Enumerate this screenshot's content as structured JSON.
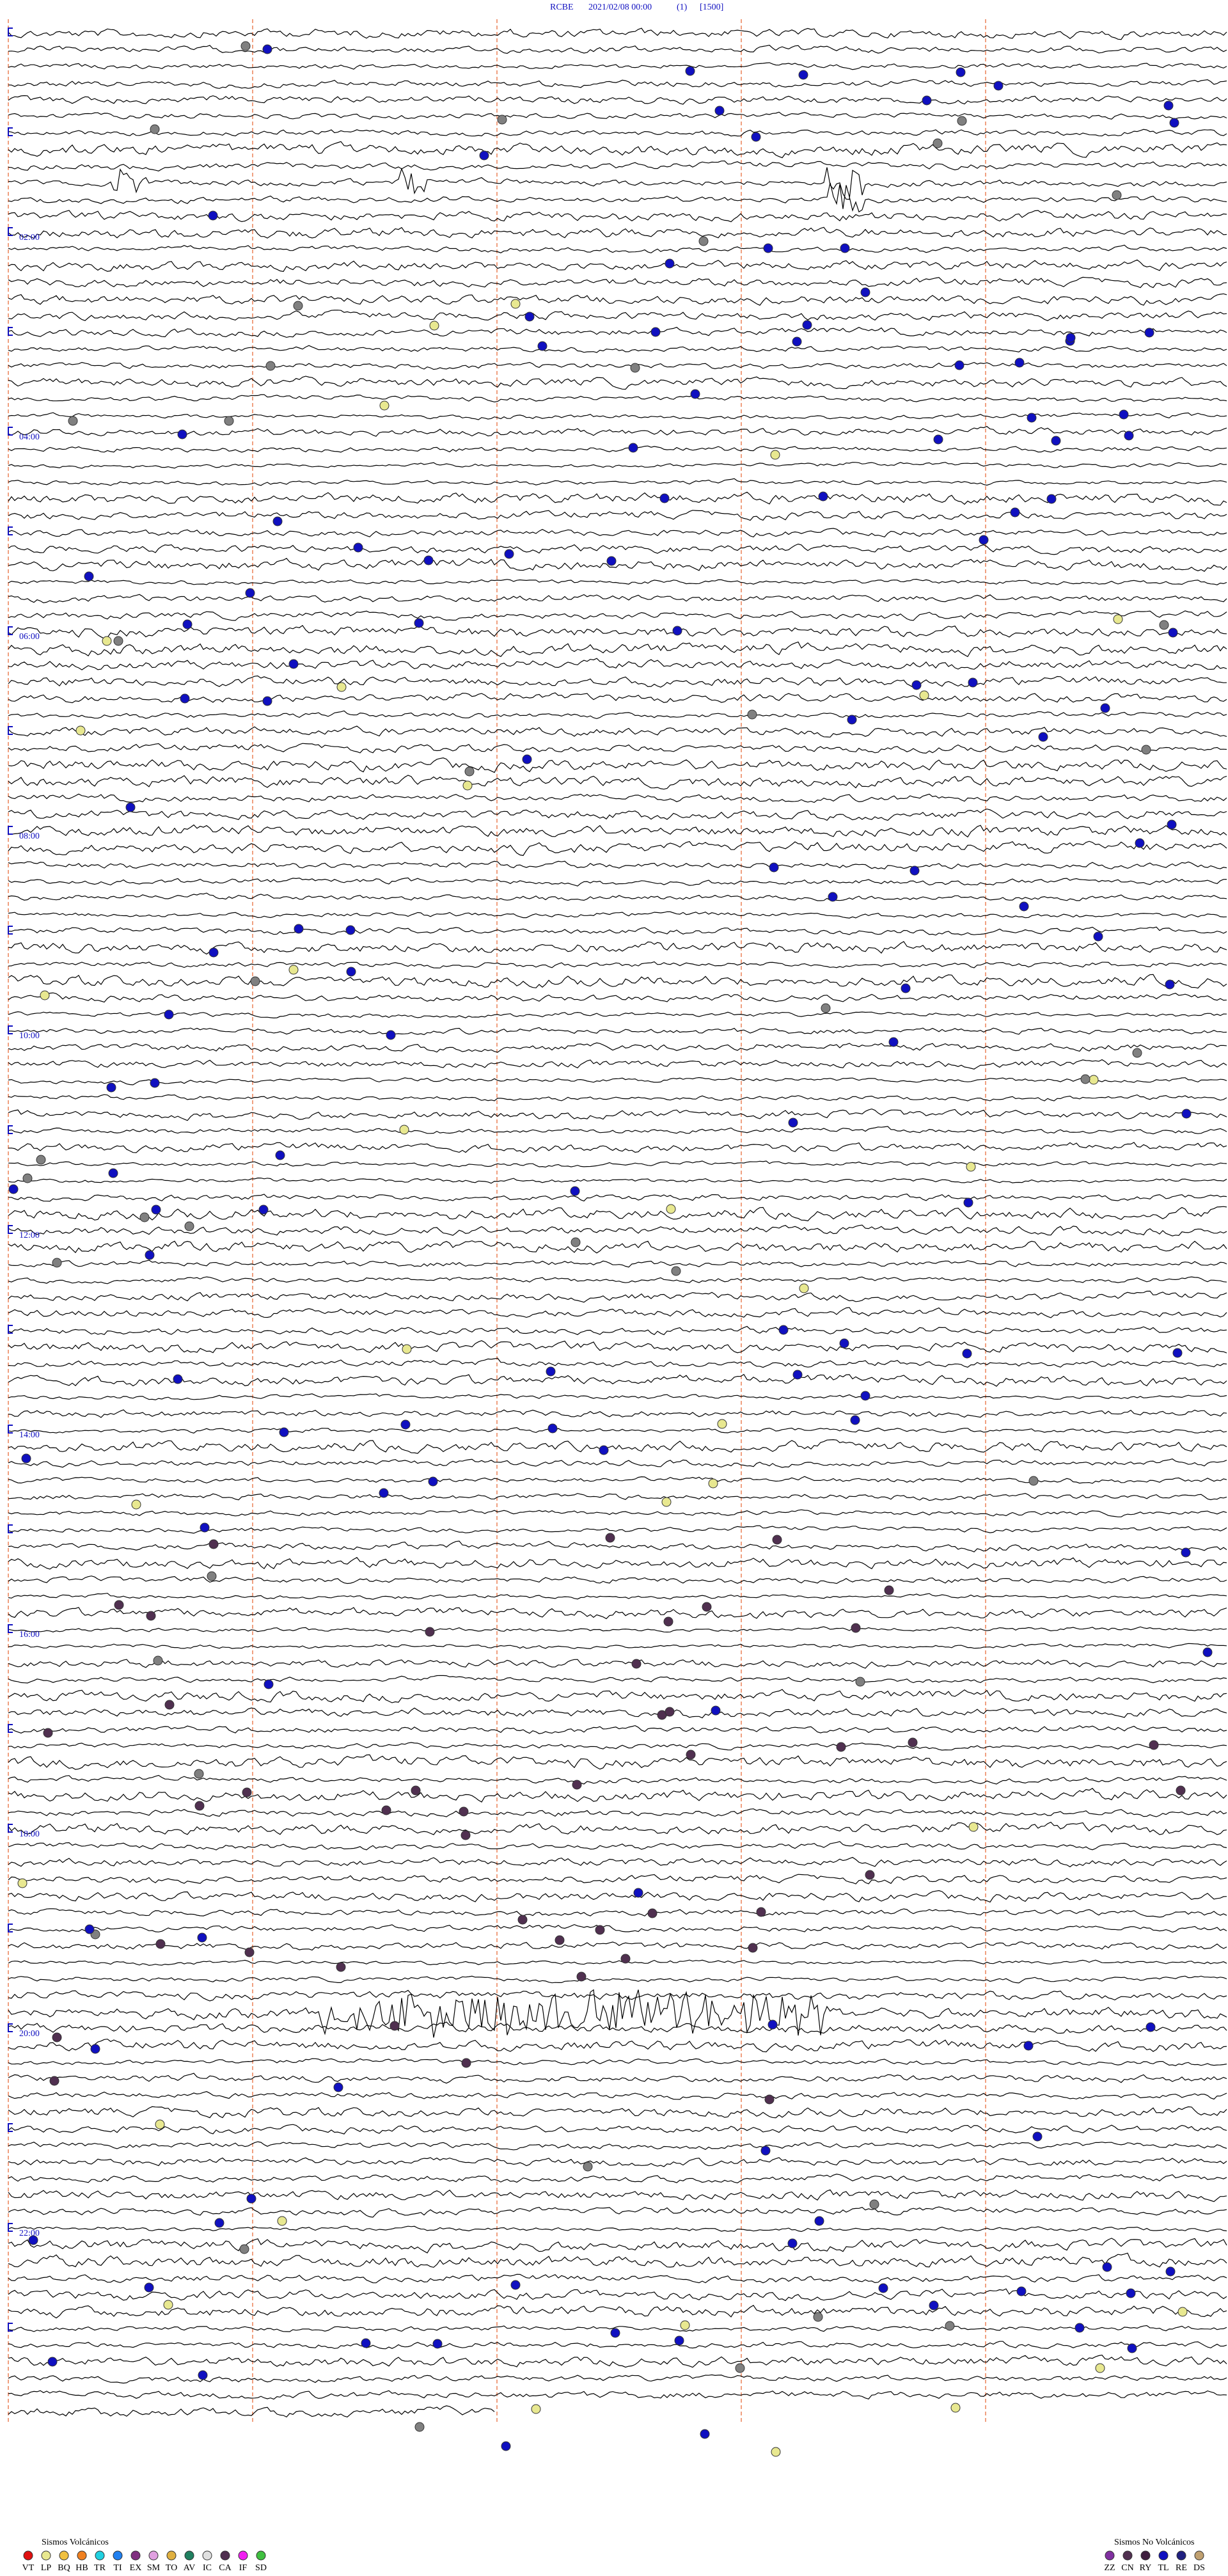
{
  "header": {
    "station": "RCBE",
    "datetime": "2021/02/08 00:00",
    "channel": "(1)",
    "scale": "[1500]"
  },
  "time_labels": [
    "02:00",
    "04:00",
    "06:00",
    "08:00",
    "10:00",
    "12:00",
    "14:00",
    "16:00",
    "18:00",
    "20:00",
    "22:00"
  ],
  "legend_volcanic": {
    "title": "Sismos Volcánicos",
    "items": [
      {
        "code": "VT",
        "color": "#e01010"
      },
      {
        "code": "LP",
        "color": "#e8e890"
      },
      {
        "code": "BQ",
        "color": "#f0c040"
      },
      {
        "code": "HB",
        "color": "#f08020"
      },
      {
        "code": "TR",
        "color": "#20d0e0"
      },
      {
        "code": "TI",
        "color": "#2080f0"
      },
      {
        "code": "EX",
        "color": "#803080"
      },
      {
        "code": "SM",
        "color": "#e0a0e0"
      },
      {
        "code": "TO",
        "color": "#e0b040"
      },
      {
        "code": "AV",
        "color": "#208060"
      },
      {
        "code": "IC",
        "color": "#e0e0e0"
      },
      {
        "code": "CA",
        "color": "#503050"
      },
      {
        "code": "IF",
        "color": "#f020f0"
      },
      {
        "code": "SD",
        "color": "#40c040"
      }
    ]
  },
  "legend_non_volcanic": {
    "title": "Sismos No Volcánicos",
    "items": [
      {
        "code": "ZZ",
        "color": "#8030a0"
      },
      {
        "code": "CN",
        "color": "#503050"
      },
      {
        "code": "RY",
        "color": "#402040"
      },
      {
        "code": "TL",
        "color": "#1010c0"
      },
      {
        "code": "RE",
        "color": "#202080"
      },
      {
        "code": "DS",
        "color": "#c0a070"
      }
    ]
  }
}
